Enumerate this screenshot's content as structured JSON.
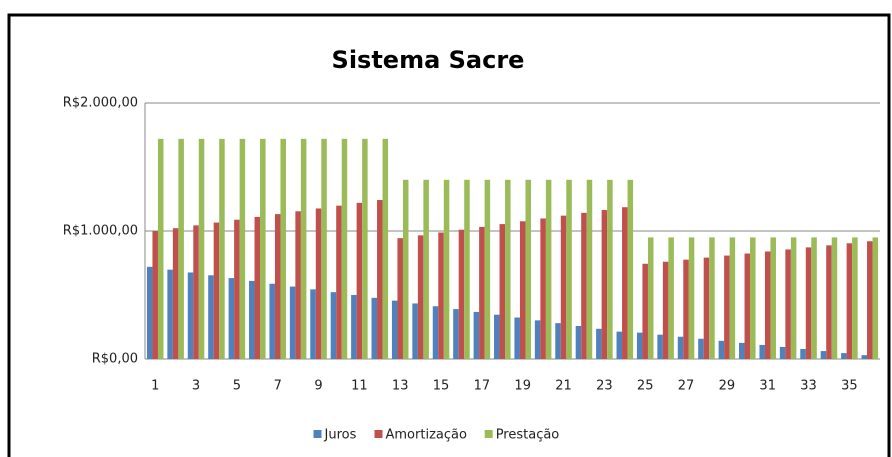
{
  "chart_data": {
    "type": "bar",
    "title": "Sistema Sacre",
    "categories": [
      "1",
      null,
      "3",
      null,
      "5",
      null,
      "7",
      null,
      "9",
      null,
      "11",
      null,
      "13",
      null,
      "15",
      null,
      "17",
      null,
      "19",
      null,
      "21",
      null,
      "23",
      null,
      "25",
      null,
      "27",
      null,
      "29",
      null,
      "31",
      null,
      "33",
      null,
      "35",
      null
    ],
    "series": [
      {
        "name": "Juros",
        "color": "#4f81bd",
        "values": [
          720,
          698,
          676,
          654,
          632,
          610,
          588,
          566,
          544,
          522,
          500,
          478,
          456,
          434,
          412,
          390,
          368,
          346,
          324,
          302,
          280,
          258,
          236,
          214,
          206,
          190,
          174,
          158,
          142,
          126,
          110,
          94,
          78,
          62,
          46,
          30
        ]
      },
      {
        "name": "Amortização",
        "color": "#c0504d",
        "values": [
          1000,
          1022,
          1044,
          1066,
          1088,
          1110,
          1132,
          1154,
          1176,
          1198,
          1220,
          1242,
          944,
          966,
          988,
          1010,
          1032,
          1054,
          1076,
          1098,
          1120,
          1142,
          1164,
          1186,
          744,
          760,
          776,
          792,
          808,
          824,
          840,
          856,
          872,
          888,
          904,
          920
        ]
      },
      {
        "name": "Prestação",
        "color": "#9bbb59",
        "values": [
          1720,
          1720,
          1720,
          1720,
          1720,
          1720,
          1720,
          1720,
          1720,
          1720,
          1720,
          1720,
          1400,
          1400,
          1400,
          1400,
          1400,
          1400,
          1400,
          1400,
          1400,
          1400,
          1400,
          1400,
          950,
          950,
          950,
          950,
          950,
          950,
          950,
          950,
          950,
          950,
          950,
          950
        ]
      }
    ],
    "ylim": [
      0,
      2000
    ],
    "yticks": [
      {
        "value": 0,
        "label": "R$0,00"
      },
      {
        "value": 1000,
        "label": "R$1.000,00"
      },
      {
        "value": 2000,
        "label": "R$2.000,00"
      }
    ],
    "grid": true,
    "legend": "bottom"
  }
}
